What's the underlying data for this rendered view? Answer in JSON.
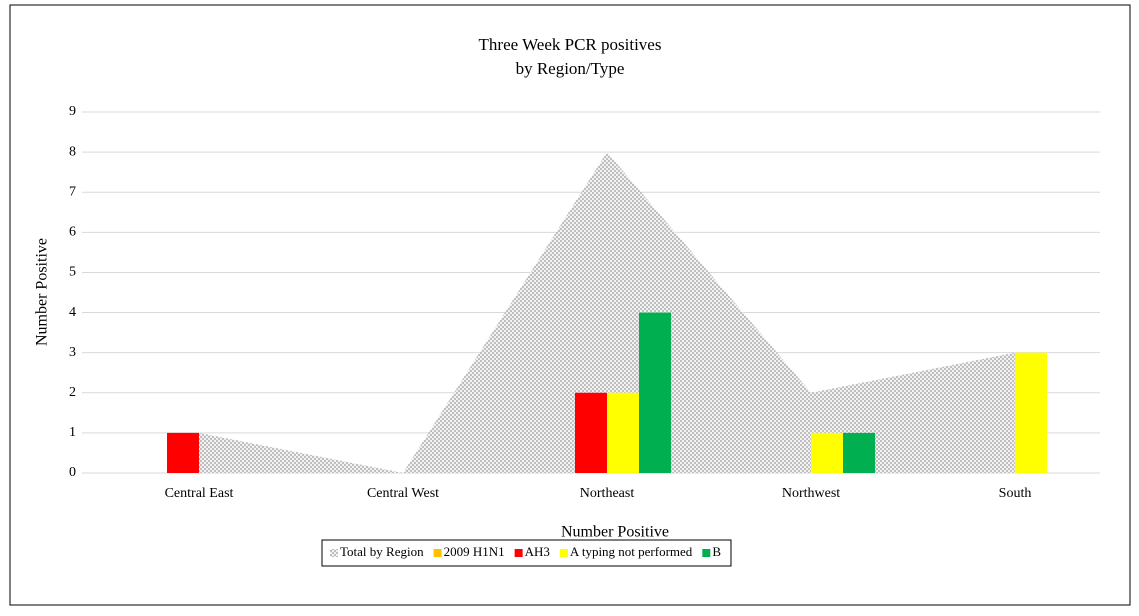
{
  "chart_data": {
    "type": "bar",
    "title": "Three Week PCR positives",
    "subtitle": "by Region/Type",
    "x_label": "Number Positive",
    "y_label": "Number Positive",
    "categories": [
      "Central East",
      "Central West",
      "Northeast",
      "Northwest",
      "South"
    ],
    "series": [
      {
        "name": "Total by Region",
        "type": "area",
        "color": "#c0c0c0",
        "values": [
          1,
          0,
          8,
          2,
          3
        ]
      },
      {
        "name": "2009 H1N1",
        "color": "#ffc000",
        "values": [
          0,
          0,
          0,
          0,
          0
        ]
      },
      {
        "name": "AH3",
        "color": "#ff0000",
        "values": [
          1,
          0,
          2,
          0,
          0
        ]
      },
      {
        "name": "A typing not performed",
        "color": "#ffff00",
        "values": [
          0,
          0,
          2,
          1,
          3
        ]
      },
      {
        "name": "B",
        "color": "#00b050",
        "values": [
          0,
          0,
          4,
          1,
          0
        ]
      }
    ],
    "ylim": [
      0,
      9
    ],
    "yticks": [
      0,
      1,
      2,
      3,
      4,
      5,
      6,
      7,
      8,
      9
    ],
    "grid": true,
    "legend": "bottom"
  }
}
